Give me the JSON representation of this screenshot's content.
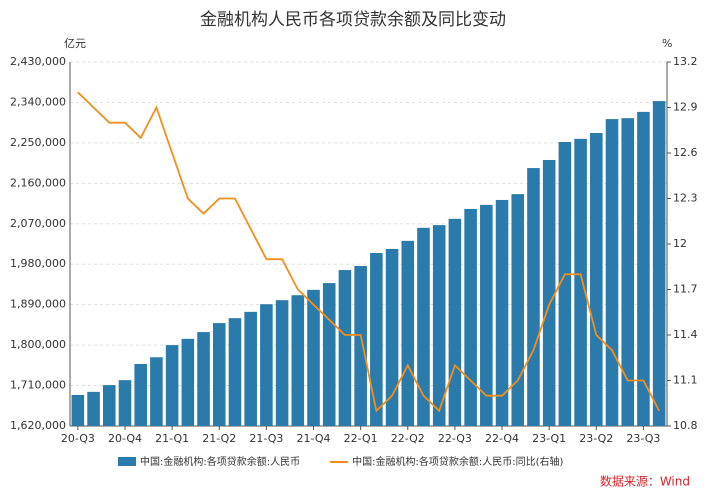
{
  "chart_data": {
    "type": "bar-line",
    "title": "金融机构人民币各项贷款余额及同比变动",
    "y_axis_label": "亿元",
    "y2_axis_label": "%",
    "source": "数据来源：Wind",
    "categories": [
      "20-Q3",
      null,
      null,
      "20-Q4",
      null,
      null,
      "21-Q1",
      null,
      null,
      "21-Q2",
      null,
      null,
      "21-Q3",
      null,
      null,
      "21-Q4",
      null,
      null,
      "22-Q1",
      null,
      null,
      "22-Q2",
      null,
      null,
      "22-Q3",
      null,
      null,
      "22-Q4",
      null,
      null,
      "23-Q1",
      null,
      null,
      "23-Q2",
      null,
      null,
      "23-Q3",
      null
    ],
    "series": [
      {
        "name": "中国:金融机构:各项贷款余额:人民币",
        "type": "bar",
        "color": "#2a7aab",
        "values": [
          1689000,
          1696000,
          1711000,
          1722000,
          1758000,
          1773000,
          1800000,
          1814000,
          1829000,
          1849000,
          1860000,
          1874000,
          1891000,
          1900000,
          1911000,
          1923000,
          1938000,
          1967000,
          1976000,
          2005000,
          2014000,
          2032000,
          2061000,
          2067000,
          2081000,
          2103000,
          2112000,
          2123000,
          2136000,
          2194000,
          2212000,
          2252000,
          2259000,
          2272000,
          2303000,
          2305000,
          2319000,
          2343000
        ]
      },
      {
        "name": "中国:金融机构:各项贷款余额:人民币:同比(右轴)",
        "type": "line",
        "axis": "y2",
        "color": "#f28e1c",
        "values": [
          13.0,
          12.9,
          12.8,
          12.8,
          12.7,
          12.9,
          12.6,
          12.3,
          12.2,
          12.3,
          12.3,
          12.1,
          11.9,
          11.9,
          11.7,
          11.6,
          11.5,
          11.4,
          11.4,
          10.9,
          11.0,
          11.2,
          11.0,
          10.9,
          11.2,
          11.1,
          11.0,
          11.0,
          11.1,
          11.3,
          11.6,
          11.8,
          11.8,
          11.4,
          11.3,
          11.1,
          11.1,
          10.9
        ]
      }
    ],
    "ylim": [
      1620000,
      2430000
    ],
    "yticks": [
      {
        "value": 1620000,
        "label": "1,620,000"
      },
      {
        "value": 1710000,
        "label": "1,710,000"
      },
      {
        "value": 1800000,
        "label": "1,800,000"
      },
      {
        "value": 1890000,
        "label": "1,890,000"
      },
      {
        "value": 1980000,
        "label": "1,980,000"
      },
      {
        "value": 2070000,
        "label": "2,070,000"
      },
      {
        "value": 2160000,
        "label": "2,160,000"
      },
      {
        "value": 2250000,
        "label": "2,250,000"
      },
      {
        "value": 2340000,
        "label": "2,340,000"
      },
      {
        "value": 2430000,
        "label": "2,430,000"
      }
    ],
    "y2lim": [
      10.8,
      13.2
    ],
    "y2ticks": [
      10.8,
      11.1,
      11.4,
      11.7,
      12,
      12.3,
      12.6,
      12.9,
      13.2
    ],
    "grid": true
  }
}
